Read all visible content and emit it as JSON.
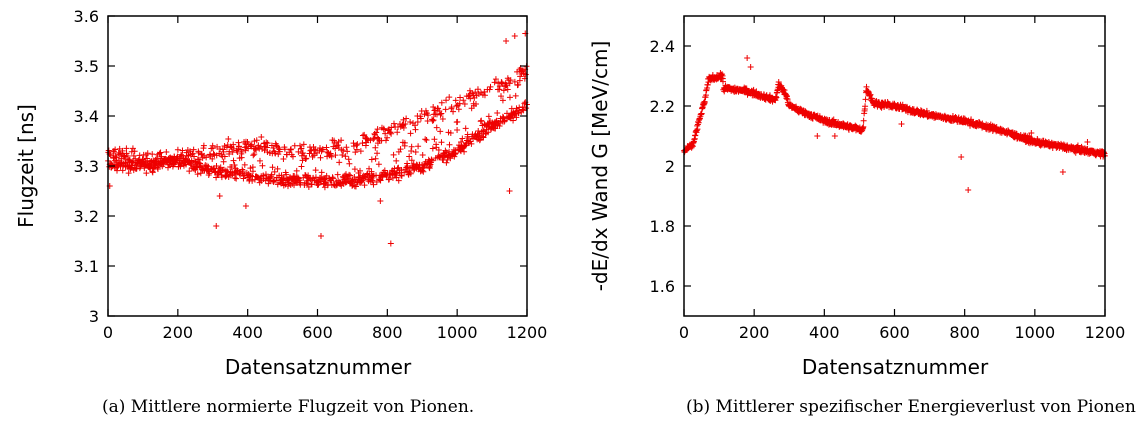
{
  "colors": {
    "points": "#ee0000",
    "axes": "#000000"
  },
  "captions": {
    "a": "(a) Mittlere normierte Flugzeit von Pionen.",
    "b": "(b) Mittlerer spezifischer Energieverlust von Pionen"
  },
  "chart_data": [
    {
      "type": "scatter",
      "marker": "plus",
      "xlabel": "Datensatznummer",
      "ylabel": "Flugzeit [ns]",
      "xlim": [
        0,
        1200
      ],
      "ylim": [
        3.0,
        3.6
      ],
      "xticks": [
        0,
        200,
        400,
        600,
        800,
        1000,
        1200
      ],
      "yticks": [
        3,
        3.1,
        3.2,
        3.3,
        3.4,
        3.5,
        3.6
      ],
      "ytick_labels": [
        "3",
        "3.1",
        "3.2",
        "3.3",
        "3.4",
        "3.5",
        "3.6"
      ],
      "grid": false,
      "n_points": 1200,
      "lower_band": [
        [
          0,
          3.3
        ],
        [
          100,
          3.3
        ],
        [
          200,
          3.31
        ],
        [
          300,
          3.29
        ],
        [
          400,
          3.28
        ],
        [
          500,
          3.27
        ],
        [
          600,
          3.27
        ],
        [
          700,
          3.27
        ],
        [
          800,
          3.28
        ],
        [
          900,
          3.3
        ],
        [
          1000,
          3.33
        ],
        [
          1050,
          3.36
        ],
        [
          1100,
          3.38
        ],
        [
          1150,
          3.4
        ],
        [
          1200,
          3.42
        ]
      ],
      "upper_band": [
        [
          0,
          3.33
        ],
        [
          100,
          3.31
        ],
        [
          200,
          3.32
        ],
        [
          300,
          3.33
        ],
        [
          400,
          3.34
        ],
        [
          500,
          3.33
        ],
        [
          600,
          3.33
        ],
        [
          700,
          3.34
        ],
        [
          800,
          3.37
        ],
        [
          900,
          3.4
        ],
        [
          1000,
          3.42
        ],
        [
          1050,
          3.44
        ],
        [
          1100,
          3.46
        ],
        [
          1150,
          3.47
        ],
        [
          1200,
          3.49
        ]
      ],
      "outliers": [
        [
          5,
          3.26
        ],
        [
          310,
          3.18
        ],
        [
          395,
          3.22
        ],
        [
          610,
          3.16
        ],
        [
          780,
          3.23
        ],
        [
          810,
          3.145
        ],
        [
          1140,
          3.55
        ],
        [
          1150,
          3.25
        ],
        [
          1165,
          3.56
        ],
        [
          1195,
          3.565
        ],
        [
          320,
          3.24
        ]
      ]
    },
    {
      "type": "scatter",
      "marker": "plus",
      "xlabel": "Datensatznummer",
      "ylabel": "-dE/dx Wand G [MeV/cm]",
      "xlim": [
        0,
        1200
      ],
      "ylim": [
        1.5,
        2.5
      ],
      "xticks": [
        0,
        200,
        400,
        600,
        800,
        1000,
        1200
      ],
      "yticks": [
        1.6,
        1.8,
        2,
        2.2,
        2.4
      ],
      "ytick_labels": [
        "1.6",
        "1.8",
        "2",
        "2.2",
        "2.4"
      ],
      "grid": false,
      "n_points": 1200,
      "trend": [
        [
          0,
          2.05
        ],
        [
          25,
          2.07
        ],
        [
          45,
          2.16
        ],
        [
          60,
          2.22
        ],
        [
          70,
          2.29
        ],
        [
          110,
          2.3
        ],
        [
          112,
          2.26
        ],
        [
          180,
          2.25
        ],
        [
          260,
          2.22
        ],
        [
          270,
          2.27
        ],
        [
          290,
          2.24
        ],
        [
          300,
          2.2
        ],
        [
          400,
          2.15
        ],
        [
          510,
          2.12
        ],
        [
          520,
          2.26
        ],
        [
          540,
          2.21
        ],
        [
          600,
          2.2
        ],
        [
          700,
          2.17
        ],
        [
          800,
          2.15
        ],
        [
          900,
          2.12
        ],
        [
          1000,
          2.08
        ],
        [
          1100,
          2.06
        ],
        [
          1200,
          2.04
        ]
      ],
      "outliers": [
        [
          180,
          2.36
        ],
        [
          190,
          2.33
        ],
        [
          270,
          2.28
        ],
        [
          380,
          2.1
        ],
        [
          430,
          2.1
        ],
        [
          620,
          2.14
        ],
        [
          790,
          2.03
        ],
        [
          810,
          1.92
        ],
        [
          1080,
          1.98
        ],
        [
          990,
          2.11
        ],
        [
          1150,
          2.08
        ]
      ]
    }
  ]
}
